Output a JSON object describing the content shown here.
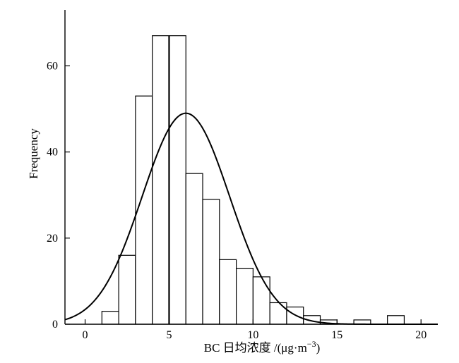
{
  "chart_data": {
    "type": "bar",
    "subtype": "histogram",
    "title": "",
    "xlabel_main": "BC 日均浓度 /(μg·m",
    "xlabel_exp": "−3",
    "xlabel_close": ")",
    "ylabel": "Frequency",
    "xlim": [
      -1.2,
      21
    ],
    "ylim": [
      0,
      73
    ],
    "x_ticks": [
      0,
      5,
      10,
      15,
      20
    ],
    "y_ticks": [
      0,
      20,
      40,
      60
    ],
    "bin_width": 1,
    "bins": [
      {
        "start": 1,
        "value": 3
      },
      {
        "start": 2,
        "value": 16
      },
      {
        "start": 3,
        "value": 53
      },
      {
        "start": 4,
        "value": 67
      },
      {
        "start": 5,
        "value": 67
      },
      {
        "start": 6,
        "value": 35
      },
      {
        "start": 7,
        "value": 29
      },
      {
        "start": 8,
        "value": 15
      },
      {
        "start": 9,
        "value": 13
      },
      {
        "start": 10,
        "value": 11
      },
      {
        "start": 11,
        "value": 5
      },
      {
        "start": 12,
        "value": 4
      },
      {
        "start": 13,
        "value": 2
      },
      {
        "start": 14,
        "value": 1
      },
      {
        "start": 16,
        "value": 1
      },
      {
        "start": 18,
        "value": 2
      }
    ],
    "reference_line_x": 5,
    "normal_fit": {
      "mean": 6.0,
      "sd": 2.6,
      "peak": 49
    },
    "grid": false,
    "legend": "none"
  }
}
